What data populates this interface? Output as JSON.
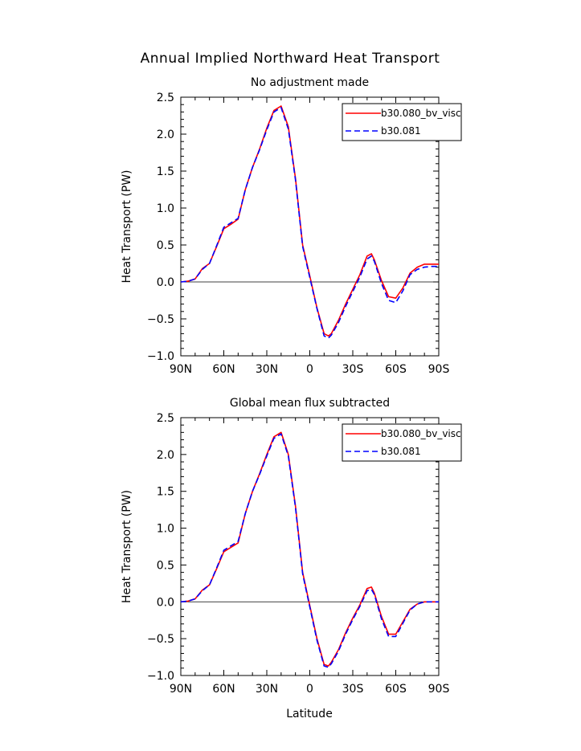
{
  "figure_title": "Annual Implied Northward Heat Transport",
  "xlabel": "Latitude",
  "colors": {
    "series_1": "#ff0000",
    "series_2": "#0000ff",
    "zero_line": "#000000"
  },
  "chart_data": [
    {
      "type": "line",
      "title": "No adjustment made",
      "xlabel": "",
      "ylabel": "Heat Transport (PW)",
      "xlim": [
        90,
        -90
      ],
      "ylim": [
        -1.0,
        2.5
      ],
      "x_ticks": [
        90,
        60,
        30,
        0,
        -30,
        -60,
        -90
      ],
      "x_tick_labels": [
        "90N",
        "60N",
        "30N",
        "0",
        "30S",
        "60S",
        "90S"
      ],
      "y_ticks": [
        -1.0,
        -0.5,
        0.0,
        0.5,
        1.0,
        1.5,
        2.0,
        2.5
      ],
      "y_tick_labels": [
        "−1.0",
        "−0.5",
        "0.0",
        "0.5",
        "1.0",
        "1.5",
        "2.0",
        "2.5"
      ],
      "legend_position": "top-right",
      "reference_line": 0,
      "x": [
        90,
        85,
        80,
        75,
        70,
        65,
        60,
        55,
        50,
        45,
        40,
        35,
        30,
        25,
        20,
        15,
        10,
        5,
        0,
        -5,
        -10,
        -13,
        -15,
        -20,
        -25,
        -30,
        -35,
        -40,
        -43,
        -45,
        -50,
        -55,
        -60,
        -65,
        -70,
        -75,
        -80,
        -85,
        -90
      ],
      "series": [
        {
          "name": "b30.080_bv_visc",
          "style": "solid",
          "color": "#ff0000",
          "values": [
            0.0,
            0.01,
            0.04,
            0.18,
            0.25,
            0.48,
            0.72,
            0.78,
            0.85,
            1.25,
            1.55,
            1.8,
            2.08,
            2.32,
            2.38,
            2.1,
            1.4,
            0.5,
            0.08,
            -0.35,
            -0.7,
            -0.73,
            -0.7,
            -0.52,
            -0.3,
            -0.1,
            0.1,
            0.35,
            0.38,
            0.3,
            0.02,
            -0.2,
            -0.22,
            -0.08,
            0.12,
            0.2,
            0.24,
            0.24,
            0.24
          ]
        },
        {
          "name": "b30.081",
          "style": "dashed",
          "color": "#0000ff",
          "values": [
            0.0,
            0.01,
            0.04,
            0.17,
            0.25,
            0.49,
            0.74,
            0.8,
            0.86,
            1.25,
            1.55,
            1.79,
            2.06,
            2.3,
            2.36,
            2.07,
            1.38,
            0.48,
            0.06,
            -0.36,
            -0.73,
            -0.76,
            -0.72,
            -0.55,
            -0.33,
            -0.13,
            0.07,
            0.31,
            0.35,
            0.28,
            -0.02,
            -0.25,
            -0.28,
            -0.12,
            0.1,
            0.17,
            0.2,
            0.21,
            0.21
          ]
        }
      ]
    },
    {
      "type": "line",
      "title": "Global mean flux subtracted",
      "xlabel": "Latitude",
      "ylabel": "Heat Transport (PW)",
      "xlim": [
        90,
        -90
      ],
      "ylim": [
        -1.0,
        2.5
      ],
      "x_ticks": [
        90,
        60,
        30,
        0,
        -30,
        -60,
        -90
      ],
      "x_tick_labels": [
        "90N",
        "60N",
        "30N",
        "0",
        "30S",
        "60S",
        "90S"
      ],
      "y_ticks": [
        -1.0,
        -0.5,
        0.0,
        0.5,
        1.0,
        1.5,
        2.0,
        2.5
      ],
      "y_tick_labels": [
        "−1.0",
        "−0.5",
        "0.0",
        "0.5",
        "1.0",
        "1.5",
        "2.0",
        "2.5"
      ],
      "legend_position": "top-right",
      "reference_line": 0,
      "x": [
        90,
        85,
        80,
        75,
        70,
        65,
        60,
        55,
        50,
        45,
        40,
        35,
        30,
        25,
        20,
        15,
        10,
        5,
        0,
        -5,
        -10,
        -13,
        -15,
        -20,
        -25,
        -30,
        -35,
        -40,
        -43,
        -45,
        -50,
        -55,
        -60,
        -65,
        -70,
        -75,
        -80,
        -85,
        -90
      ],
      "series": [
        {
          "name": "b30.080_bv_visc",
          "style": "solid",
          "color": "#ff0000",
          "values": [
            0.0,
            0.01,
            0.04,
            0.16,
            0.23,
            0.45,
            0.68,
            0.74,
            0.8,
            1.2,
            1.5,
            1.74,
            2.0,
            2.24,
            2.3,
            2.0,
            1.3,
            0.4,
            -0.05,
            -0.5,
            -0.85,
            -0.87,
            -0.82,
            -0.65,
            -0.42,
            -0.22,
            -0.04,
            0.18,
            0.2,
            0.12,
            -0.2,
            -0.44,
            -0.44,
            -0.27,
            -0.1,
            -0.03,
            0.0,
            0.0,
            0.0
          ]
        },
        {
          "name": "b30.081",
          "style": "dashed",
          "color": "#0000ff",
          "values": [
            0.0,
            0.01,
            0.04,
            0.15,
            0.23,
            0.46,
            0.7,
            0.76,
            0.82,
            1.2,
            1.5,
            1.73,
            1.98,
            2.22,
            2.28,
            1.98,
            1.28,
            0.38,
            -0.07,
            -0.52,
            -0.87,
            -0.89,
            -0.84,
            -0.67,
            -0.44,
            -0.24,
            -0.06,
            0.15,
            0.17,
            0.1,
            -0.23,
            -0.47,
            -0.47,
            -0.29,
            -0.11,
            -0.03,
            0.0,
            0.0,
            0.0
          ]
        }
      ]
    }
  ]
}
